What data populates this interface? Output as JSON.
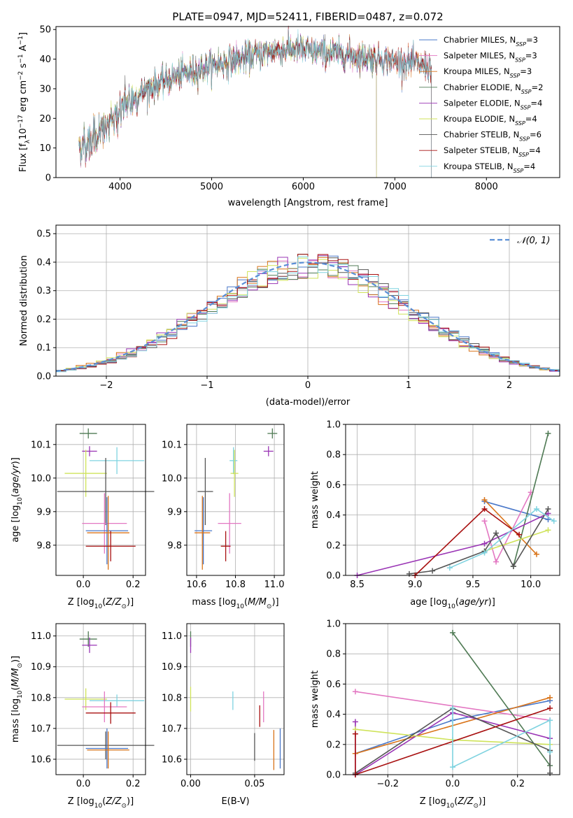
{
  "colors": {
    "chabrier_miles": "#4a78c9",
    "salpeter_miles": "#e377c2",
    "kroupa_miles": "#d9741a",
    "chabrier_elodie": "#4f7a54",
    "salpeter_elodie": "#9a35b5",
    "kroupa_elodie": "#cfe35a",
    "chabrier_stelib": "#555555",
    "salpeter_stelib": "#a81010",
    "kroupa_stelib": "#7fd3e0",
    "gauss": "#5b8fd6"
  },
  "title": "PLATE=0947, MJD=52411, FIBERID=0487, z=0.072",
  "chart_data": [
    {
      "id": "spectrum",
      "type": "line",
      "xlabel": "wavelength [Angstrom, rest frame]",
      "ylabel": "Flux [f_λ 10^-17 erg cm^-2 s^-1 A^-1]",
      "xlim": [
        3300,
        8800
      ],
      "ylim": [
        0,
        51
      ],
      "xticks": [
        4000,
        5000,
        6000,
        7000,
        8000
      ],
      "yticks": [
        0,
        10,
        20,
        30,
        40,
        50
      ],
      "grid": false,
      "legend_position": "top-right",
      "x_range": [
        3550,
        7400
      ],
      "continuum": [
        [
          3550,
          10
        ],
        [
          3700,
          13
        ],
        [
          3900,
          18
        ],
        [
          4000,
          23
        ],
        [
          4150,
          27
        ],
        [
          4300,
          30
        ],
        [
          4500,
          33
        ],
        [
          4700,
          35
        ],
        [
          4900,
          37
        ],
        [
          5100,
          38.5
        ],
        [
          5300,
          40
        ],
        [
          5500,
          41.5
        ],
        [
          5700,
          43
        ],
        [
          5900,
          43.5
        ],
        [
          6100,
          42.5
        ],
        [
          6300,
          42
        ],
        [
          6500,
          41.5
        ],
        [
          6700,
          40.5
        ],
        [
          6900,
          40
        ],
        [
          7100,
          39
        ],
        [
          7300,
          38
        ],
        [
          7400,
          37.5
        ]
      ],
      "series": [
        {
          "name": "Chabrier MILES, N_SSP=3",
          "name_main": "Chabrier MILES, N",
          "name_sub": "SSP",
          "name_tail": "=3",
          "color_key": "chabrier_miles",
          "end": 7400
        },
        {
          "name": "Salpeter MILES, N_SSP=3",
          "name_main": "Salpeter MILES, N",
          "name_sub": "SSP",
          "name_tail": "=3",
          "color_key": "salpeter_miles",
          "end": 7400
        },
        {
          "name": "Kroupa MILES, N_SSP=3",
          "name_main": "Kroupa MILES, N",
          "name_sub": "SSP",
          "name_tail": "=3",
          "color_key": "kroupa_miles",
          "end": 7400
        },
        {
          "name": "Chabrier ELODIE, N_SSP=2",
          "name_main": "Chabrier ELODIE, N",
          "name_sub": "SSP",
          "name_tail": "=2",
          "color_key": "chabrier_elodie",
          "end": 6800
        },
        {
          "name": "Salpeter ELODIE, N_SSP=4",
          "name_main": "Salpeter ELODIE, N",
          "name_sub": "SSP",
          "name_tail": "=4",
          "color_key": "salpeter_elodie",
          "end": 6800
        },
        {
          "name": "Kroupa ELODIE, N_SSP=4",
          "name_main": "Kroupa ELODIE, N",
          "name_sub": "SSP",
          "name_tail": "=4",
          "color_key": "kroupa_elodie",
          "end": 6800
        },
        {
          "name": "Chabrier STELIB, N_SSP=6",
          "name_main": "Chabrier STELIB, N",
          "name_sub": "SSP",
          "name_tail": "=6",
          "color_key": "chabrier_stelib",
          "end": 7400
        },
        {
          "name": "Salpeter STELIB, N_SSP=4",
          "name_main": "Salpeter STELIB, N",
          "name_sub": "SSP",
          "name_tail": "=4",
          "color_key": "salpeter_stelib",
          "end": 7400
        },
        {
          "name": "Kroupa STELIB, N_SSP=4",
          "name_main": "Kroupa STELIB, N",
          "name_sub": "SSP",
          "name_tail": "=4",
          "color_key": "kroupa_stelib",
          "end": 7400
        }
      ]
    },
    {
      "id": "residuals",
      "type": "histogram",
      "xlabel": "(data-model)/error",
      "ylabel": "Normed distribution",
      "xlim": [
        -2.5,
        2.5
      ],
      "ylim": [
        0,
        0.53
      ],
      "xticks": [
        -2,
        -1,
        0,
        1,
        2
      ],
      "yticks": [
        0.0,
        0.1,
        0.2,
        0.3,
        0.4,
        0.5
      ],
      "grid": true,
      "legend_position": "top-right",
      "legend": "N(0,1)",
      "bin_width": 0.1,
      "n_series": 9
    },
    {
      "id": "age_vs_Z",
      "type": "errorbar",
      "xlabel": "Z [log10(Z/Z_sun)]",
      "ylabel": "age [log10(age/yr)]",
      "xlim": [
        -0.11,
        0.25
      ],
      "ylim": [
        9.71,
        10.16
      ],
      "xticks": [
        0.0,
        0.2
      ],
      "yticks": [
        9.8,
        9.9,
        10.0,
        10.1
      ],
      "grid": true,
      "points": [
        {
          "color_key": "chabrier_elodie",
          "x": 0.02,
          "xerr": 0.035,
          "y": 10.133,
          "yerr": 0.015
        },
        {
          "color_key": "salpeter_elodie",
          "x": 0.025,
          "xerr": 0.03,
          "y": 10.08,
          "yerr": 0.015
        },
        {
          "color_key": "kroupa_stelib",
          "x": 0.135,
          "xerr": 0.11,
          "y": 10.052,
          "yerr": 0.04
        },
        {
          "color_key": "kroupa_elodie",
          "x": 0.01,
          "xerr": 0.085,
          "y": 10.014,
          "yerr": 0.07
        },
        {
          "color_key": "chabrier_stelib",
          "x": 0.09,
          "xerr": 0.195,
          "y": 9.96,
          "yerr": 0.1
        },
        {
          "color_key": "salpeter_miles",
          "x": 0.085,
          "xerr": 0.09,
          "y": 9.865,
          "yerr": 0.09
        },
        {
          "color_key": "chabrier_miles",
          "x": 0.095,
          "xerr": 0.085,
          "y": 9.843,
          "yerr": 0.1
        },
        {
          "color_key": "kroupa_miles",
          "x": 0.1,
          "xerr": 0.085,
          "y": 9.837,
          "yerr": 0.11
        },
        {
          "color_key": "salpeter_stelib",
          "x": 0.11,
          "xerr": 0.1,
          "y": 9.797,
          "yerr": 0.045
        }
      ]
    },
    {
      "id": "age_vs_mass",
      "type": "errorbar",
      "xlabel": "mass [log10(M/M_sun)]",
      "ylabel": "",
      "xlim": [
        10.55,
        11.05
      ],
      "ylim": [
        9.71,
        10.16
      ],
      "xticks": [
        10.6,
        10.8,
        11.0
      ],
      "yticks": [
        9.8,
        9.9,
        10.0,
        10.1
      ],
      "grid": true,
      "points": [
        {
          "color_key": "chabrier_elodie",
          "x": 10.99,
          "xerr": 0.025,
          "y": 10.133,
          "yerr": 0.015
        },
        {
          "color_key": "salpeter_elodie",
          "x": 10.97,
          "xerr": 0.025,
          "y": 10.08,
          "yerr": 0.015
        },
        {
          "color_key": "kroupa_stelib",
          "x": 10.79,
          "xerr": 0.02,
          "y": 10.052,
          "yerr": 0.04
        },
        {
          "color_key": "kroupa_elodie",
          "x": 10.795,
          "xerr": 0.02,
          "y": 10.014,
          "yerr": 0.07
        },
        {
          "color_key": "chabrier_stelib",
          "x": 10.645,
          "xerr": 0.04,
          "y": 9.96,
          "yerr": 0.1
        },
        {
          "color_key": "salpeter_miles",
          "x": 10.77,
          "xerr": 0.06,
          "y": 9.865,
          "yerr": 0.09
        },
        {
          "color_key": "chabrier_miles",
          "x": 10.635,
          "xerr": 0.045,
          "y": 9.843,
          "yerr": 0.1
        },
        {
          "color_key": "kroupa_miles",
          "x": 10.63,
          "xerr": 0.04,
          "y": 9.837,
          "yerr": 0.11
        },
        {
          "color_key": "salpeter_stelib",
          "x": 10.75,
          "xerr": 0.025,
          "y": 9.797,
          "yerr": 0.045
        }
      ]
    },
    {
      "id": "weight_vs_age",
      "type": "line",
      "xlabel": "age [log10(age/yr)]",
      "ylabel": "mass weight",
      "xlim": [
        8.4,
        10.25
      ],
      "ylim": [
        0,
        1.0
      ],
      "xticks": [
        8.5,
        9.0,
        9.5,
        10.0
      ],
      "yticks": [
        0.0,
        0.2,
        0.4,
        0.6,
        0.8,
        1.0
      ],
      "grid": true,
      "series": [
        {
          "color_key": "chabrier_miles",
          "x": [
            9.6,
            10.15
          ],
          "y": [
            0.49,
            0.37
          ]
        },
        {
          "color_key": "salpeter_miles",
          "x": [
            9.6,
            9.7,
            10.0
          ],
          "y": [
            0.36,
            0.09,
            0.55
          ]
        },
        {
          "color_key": "kroupa_miles",
          "x": [
            9.6,
            10.05
          ],
          "y": [
            0.5,
            0.14
          ]
        },
        {
          "color_key": "chabrier_elodie",
          "x": [
            9.85,
            10.15
          ],
          "y": [
            0.06,
            0.94
          ]
        },
        {
          "color_key": "salpeter_elodie",
          "x": [
            8.5,
            9.6,
            10.15
          ],
          "y": [
            0.0,
            0.21,
            0.41
          ]
        },
        {
          "color_key": "kroupa_elodie",
          "x": [
            9.6,
            10.15
          ],
          "y": [
            0.16,
            0.3
          ]
        },
        {
          "color_key": "chabrier_stelib",
          "x": [
            8.95,
            9.15,
            9.6,
            9.7,
            9.85,
            10.15
          ],
          "y": [
            0.01,
            0.03,
            0.16,
            0.28,
            0.06,
            0.44
          ]
        },
        {
          "color_key": "salpeter_stelib",
          "x": [
            9.0,
            9.6,
            9.9
          ],
          "y": [
            0.0,
            0.44,
            0.27
          ]
        },
        {
          "color_key": "kroupa_stelib",
          "x": [
            9.3,
            9.6,
            10.05,
            10.2
          ],
          "y": [
            0.05,
            0.15,
            0.44,
            0.36
          ]
        }
      ]
    },
    {
      "id": "mass_vs_Z",
      "type": "errorbar",
      "xlabel": "Z [log10(Z/Z_sun)]",
      "ylabel": "mass [log10(M/M_sun)]",
      "xlim": [
        -0.11,
        0.25
      ],
      "ylim": [
        10.55,
        11.04
      ],
      "xticks": [
        0.0,
        0.2
      ],
      "yticks": [
        10.6,
        10.7,
        10.8,
        10.9,
        11.0
      ],
      "grid": true,
      "points": [
        {
          "color_key": "chabrier_elodie",
          "x": 0.02,
          "xerr": 0.035,
          "y": 10.99,
          "yerr": 0.025
        },
        {
          "color_key": "salpeter_elodie",
          "x": 0.025,
          "xerr": 0.03,
          "y": 10.97,
          "yerr": 0.025
        },
        {
          "color_key": "kroupa_stelib",
          "x": 0.135,
          "xerr": 0.11,
          "y": 10.79,
          "yerr": 0.02
        },
        {
          "color_key": "kroupa_elodie",
          "x": 0.01,
          "xerr": 0.085,
          "y": 10.795,
          "yerr": 0.035
        },
        {
          "color_key": "salpeter_miles",
          "x": 0.085,
          "xerr": 0.09,
          "y": 10.77,
          "yerr": 0.05
        },
        {
          "color_key": "salpeter_stelib",
          "x": 0.11,
          "xerr": 0.1,
          "y": 10.75,
          "yerr": 0.035
        },
        {
          "color_key": "chabrier_stelib",
          "x": 0.09,
          "xerr": 0.195,
          "y": 10.645,
          "yerr": 0.045
        },
        {
          "color_key": "chabrier_miles",
          "x": 0.095,
          "xerr": 0.085,
          "y": 10.635,
          "yerr": 0.065
        },
        {
          "color_key": "kroupa_miles",
          "x": 0.1,
          "xerr": 0.085,
          "y": 10.63,
          "yerr": 0.06
        }
      ]
    },
    {
      "id": "mass_vs_ebv",
      "type": "errorbar",
      "xlabel": "E(B-V)",
      "ylabel": "",
      "xlim": [
        -0.003,
        0.073
      ],
      "ylim": [
        10.55,
        11.04
      ],
      "xticks": [
        0.0,
        0.05
      ],
      "yticks": [
        10.6,
        10.7,
        10.8,
        10.9,
        11.0
      ],
      "grid": true,
      "points": [
        {
          "color_key": "chabrier_elodie",
          "x": 0.0,
          "xerr": 0,
          "y": 10.99,
          "yerr": 0.025
        },
        {
          "color_key": "salpeter_elodie",
          "x": 0.0,
          "xerr": 0,
          "y": 10.97,
          "yerr": 0.025
        },
        {
          "color_key": "kroupa_elodie",
          "x": 0.0,
          "xerr": 0,
          "y": 10.795,
          "yerr": 0.04
        },
        {
          "color_key": "kroupa_stelib",
          "x": 0.033,
          "xerr": 0,
          "y": 10.79,
          "yerr": 0.03
        },
        {
          "color_key": "salpeter_miles",
          "x": 0.057,
          "xerr": 0,
          "y": 10.77,
          "yerr": 0.05
        },
        {
          "color_key": "salpeter_stelib",
          "x": 0.054,
          "xerr": 0,
          "y": 10.74,
          "yerr": 0.035
        },
        {
          "color_key": "chabrier_stelib",
          "x": 0.05,
          "xerr": 0,
          "y": 10.64,
          "yerr": 0.045
        },
        {
          "color_key": "kroupa_miles",
          "x": 0.065,
          "xerr": 0,
          "y": 10.63,
          "yerr": 0.065
        },
        {
          "color_key": "chabrier_miles",
          "x": 0.07,
          "xerr": 0,
          "y": 10.635,
          "yerr": 0.065
        }
      ]
    },
    {
      "id": "weight_vs_Z",
      "type": "line",
      "xlabel": "Z [log10(Z/Z_sun)]",
      "ylabel": "mass weight",
      "xlim": [
        -0.33,
        0.33
      ],
      "ylim": [
        0,
        1.0
      ],
      "xticks": [
        -0.2,
        0.0,
        0.2
      ],
      "yticks": [
        0.0,
        0.2,
        0.4,
        0.6,
        0.8,
        1.0
      ],
      "grid": true,
      "series": [
        {
          "color_key": "chabrier_miles",
          "x": [
            -0.3,
            0.0,
            0.3
          ],
          "y": [
            0.14,
            0.36,
            0.49
          ]
        },
        {
          "color_key": "salpeter_miles",
          "x": [
            -0.3,
            0.3
          ],
          "y": [
            0.55,
            0.36
          ]
        },
        {
          "color_key": "kroupa_miles",
          "x": [
            -0.3,
            0.3
          ],
          "y": [
            0.14,
            0.51
          ]
        },
        {
          "color_key": "chabrier_elodie",
          "x": [
            0.0,
            0.3
          ],
          "y": [
            0.94,
            0.06
          ]
        },
        {
          "color_key": "salpeter_elodie",
          "x": [
            -0.3,
            -0.3,
            0.0,
            0.3
          ],
          "y": [
            0.35,
            0.0,
            0.41,
            0.24
          ]
        },
        {
          "color_key": "kroupa_elodie",
          "x": [
            -0.3,
            0.0,
            0.3
          ],
          "y": [
            0.3,
            0.23,
            0.2
          ]
        },
        {
          "color_key": "chabrier_stelib",
          "x": [
            -0.3,
            0.0,
            0.3,
            0.3
          ],
          "y": [
            0.01,
            0.44,
            0.16,
            0.01
          ]
        },
        {
          "color_key": "salpeter_stelib",
          "x": [
            -0.3,
            -0.3,
            0.3
          ],
          "y": [
            0.27,
            0.0,
            0.44
          ]
        },
        {
          "color_key": "kroupa_stelib",
          "x": [
            0.0,
            0.0,
            0.3,
            0.3
          ],
          "y": [
            0.44,
            0.05,
            0.36,
            0.15
          ]
        }
      ]
    }
  ]
}
